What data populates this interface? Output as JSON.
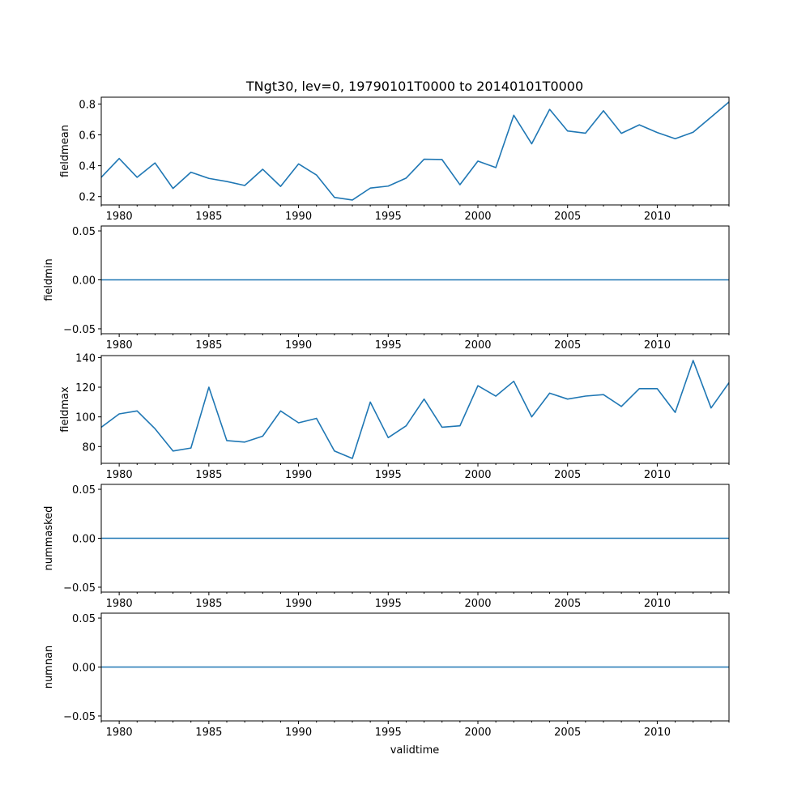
{
  "chart_data": {
    "type": "line",
    "title": "TNgt30, lev=0, 19790101T0000 to 20140101T0000",
    "xlabel": "validtime",
    "line_color": "#1f77b4",
    "x": [
      1979,
      1980,
      1981,
      1982,
      1983,
      1984,
      1985,
      1986,
      1987,
      1988,
      1989,
      1990,
      1991,
      1992,
      1993,
      1994,
      1995,
      1996,
      1997,
      1998,
      1999,
      2000,
      2001,
      2002,
      2003,
      2004,
      2005,
      2006,
      2007,
      2008,
      2009,
      2010,
      2011,
      2012,
      2013,
      2014
    ],
    "xlim": [
      1979,
      2014
    ],
    "x_ticks": [
      1980,
      1985,
      1990,
      1995,
      2000,
      2005,
      2010
    ],
    "x_tick_labels": [
      "1980",
      "1985",
      "1990",
      "1995",
      "2000",
      "2005",
      "2010"
    ],
    "panels": [
      {
        "name": "fieldmean",
        "ylabel": "fieldmean",
        "ylim": [
          0.146,
          0.844
        ],
        "yticks": [
          0.2,
          0.4,
          0.6,
          0.8
        ],
        "ytick_labels": [
          "0.2",
          "0.4",
          "0.6",
          "0.8"
        ],
        "values": [
          0.325,
          0.447,
          0.325,
          0.418,
          0.253,
          0.358,
          0.318,
          0.298,
          0.272,
          0.377,
          0.266,
          0.412,
          0.34,
          0.195,
          0.178,
          0.255,
          0.268,
          0.32,
          0.442,
          0.44,
          0.277,
          0.43,
          0.388,
          0.727,
          0.542,
          0.765,
          0.625,
          0.611,
          0.756,
          0.61,
          0.665,
          0.615,
          0.575,
          0.617,
          0.715,
          0.813
        ]
      },
      {
        "name": "fieldmin",
        "ylabel": "fieldmin",
        "ylim": [
          -0.055,
          0.055
        ],
        "yticks": [
          -0.05,
          0.0,
          0.05
        ],
        "ytick_labels": [
          "−0.05",
          "0.00",
          "0.05"
        ],
        "values": [
          0,
          0,
          0,
          0,
          0,
          0,
          0,
          0,
          0,
          0,
          0,
          0,
          0,
          0,
          0,
          0,
          0,
          0,
          0,
          0,
          0,
          0,
          0,
          0,
          0,
          0,
          0,
          0,
          0,
          0,
          0,
          0,
          0,
          0,
          0,
          0
        ]
      },
      {
        "name": "fieldmax",
        "ylabel": "fieldmax",
        "ylim": [
          68.7,
          141.3
        ],
        "yticks": [
          80,
          100,
          120,
          140
        ],
        "ytick_labels": [
          "80",
          "100",
          "120",
          "140"
        ],
        "values": [
          93,
          102,
          104,
          92,
          77,
          79,
          120,
          84,
          83,
          87,
          104,
          96,
          99,
          77,
          72,
          110,
          86,
          94,
          112,
          93,
          94,
          121,
          114,
          124,
          100,
          116,
          112,
          114,
          115,
          107,
          119,
          119,
          103,
          138,
          106,
          123
        ]
      },
      {
        "name": "nummasked",
        "ylabel": "nummasked",
        "ylim": [
          -0.055,
          0.055
        ],
        "yticks": [
          -0.05,
          0.0,
          0.05
        ],
        "ytick_labels": [
          "−0.05",
          "0.00",
          "0.05"
        ],
        "values": [
          0,
          0,
          0,
          0,
          0,
          0,
          0,
          0,
          0,
          0,
          0,
          0,
          0,
          0,
          0,
          0,
          0,
          0,
          0,
          0,
          0,
          0,
          0,
          0,
          0,
          0,
          0,
          0,
          0,
          0,
          0,
          0,
          0,
          0,
          0,
          0
        ]
      },
      {
        "name": "numnan",
        "ylabel": "numnan",
        "ylim": [
          -0.055,
          0.055
        ],
        "yticks": [
          -0.05,
          0.0,
          0.05
        ],
        "ytick_labels": [
          "−0.05",
          "0.00",
          "0.05"
        ],
        "values": [
          0,
          0,
          0,
          0,
          0,
          0,
          0,
          0,
          0,
          0,
          0,
          0,
          0,
          0,
          0,
          0,
          0,
          0,
          0,
          0,
          0,
          0,
          0,
          0,
          0,
          0,
          0,
          0,
          0,
          0,
          0,
          0,
          0,
          0,
          0,
          0
        ]
      }
    ]
  }
}
